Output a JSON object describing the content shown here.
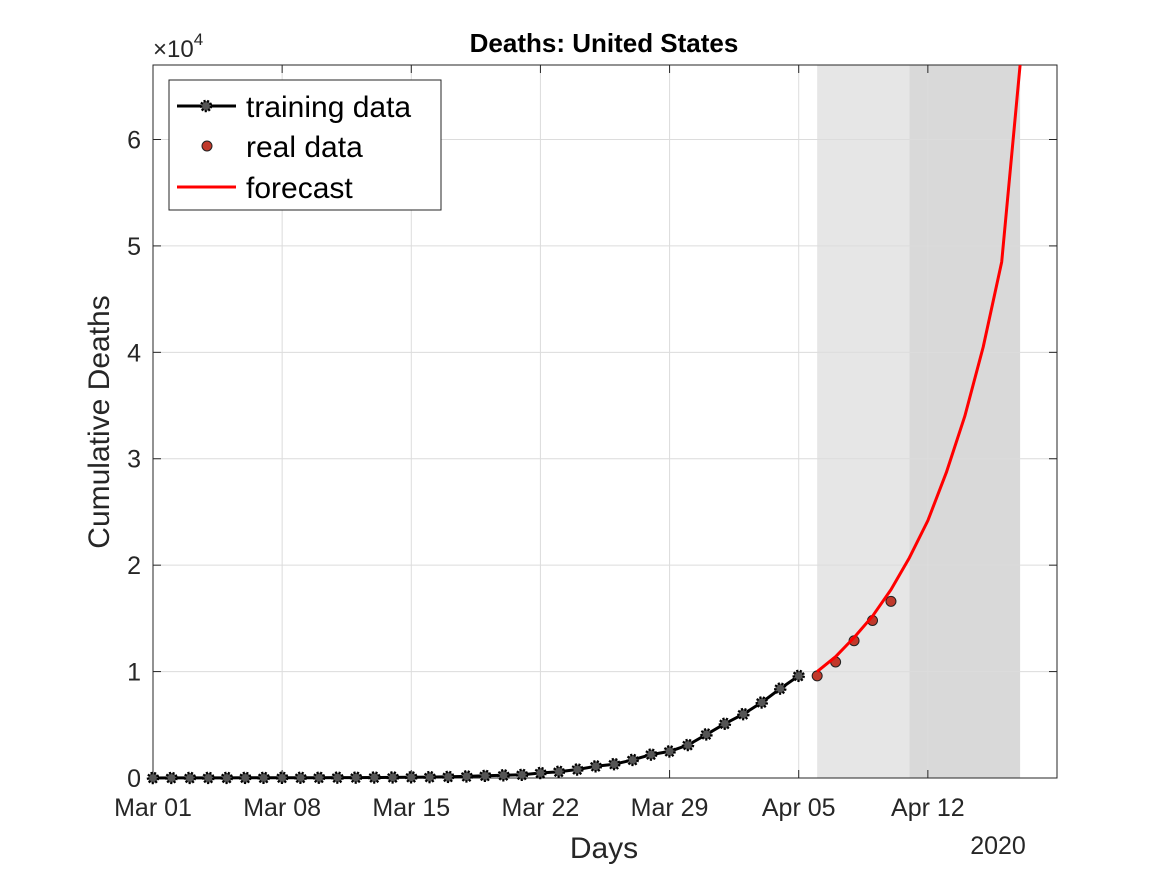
{
  "chart_data": {
    "type": "line",
    "title": "Deaths: United States",
    "xlabel": "Days",
    "ylabel": "Cumulative Deaths",
    "y_exponent_label": "×10",
    "y_exponent_power": "4",
    "year_label": "2020",
    "x_tick_labels": [
      "Mar 01",
      "Mar 08",
      "Mar 15",
      "Mar 22",
      "Mar 29",
      "Apr 05",
      "Apr 12"
    ],
    "y_tick_labels": [
      "0",
      "1",
      "2",
      "3",
      "4",
      "5",
      "6"
    ],
    "xlim": [
      "2020-03-01",
      "2020-04-19"
    ],
    "ylim": [
      0,
      67000
    ],
    "grid": true,
    "legend_position": "top-left",
    "shaded_regions": [
      {
        "start": "2020-04-06",
        "end": "2020-04-11",
        "color": "#e6e6e6"
      },
      {
        "start": "2020-04-11",
        "end": "2020-04-17",
        "color": "#d9d9d9"
      }
    ],
    "series": [
      {
        "name": "training data",
        "color": "#000000",
        "style": "line-markers",
        "x": [
          "2020-03-01",
          "2020-03-02",
          "2020-03-03",
          "2020-03-04",
          "2020-03-05",
          "2020-03-06",
          "2020-03-07",
          "2020-03-08",
          "2020-03-09",
          "2020-03-10",
          "2020-03-11",
          "2020-03-12",
          "2020-03-13",
          "2020-03-14",
          "2020-03-15",
          "2020-03-16",
          "2020-03-17",
          "2020-03-18",
          "2020-03-19",
          "2020-03-20",
          "2020-03-21",
          "2020-03-22",
          "2020-03-23",
          "2020-03-24",
          "2020-03-25",
          "2020-03-26",
          "2020-03-27",
          "2020-03-28",
          "2020-03-29",
          "2020-03-30",
          "2020-03-31",
          "2020-04-01",
          "2020-04-02",
          "2020-04-03",
          "2020-04-04",
          "2020-04-05"
        ],
        "y": [
          1,
          6,
          9,
          11,
          12,
          15,
          19,
          22,
          26,
          30,
          38,
          41,
          50,
          60,
          69,
          86,
          109,
          150,
          206,
          255,
          301,
          470,
          590,
          800,
          1100,
          1300,
          1700,
          2200,
          2500,
          3100,
          4100,
          5100,
          6000,
          7100,
          8400,
          9600
        ]
      },
      {
        "name": "real data",
        "color": "#c0392b",
        "style": "markers",
        "x": [
          "2020-04-06",
          "2020-04-07",
          "2020-04-08",
          "2020-04-09",
          "2020-04-10"
        ],
        "y": [
          9600,
          10900,
          12900,
          14800,
          16600
        ]
      },
      {
        "name": "forecast",
        "color": "#ff0000",
        "style": "line",
        "x": [
          "2020-04-06",
          "2020-04-07",
          "2020-04-08",
          "2020-04-09",
          "2020-04-10",
          "2020-04-11",
          "2020-04-12",
          "2020-04-13",
          "2020-04-14",
          "2020-04-15",
          "2020-04-16",
          "2020-04-17"
        ],
        "y": [
          10000,
          11400,
          13200,
          15200,
          17700,
          20700,
          24200,
          28700,
          34000,
          40500,
          48500,
          67000
        ]
      }
    ]
  }
}
